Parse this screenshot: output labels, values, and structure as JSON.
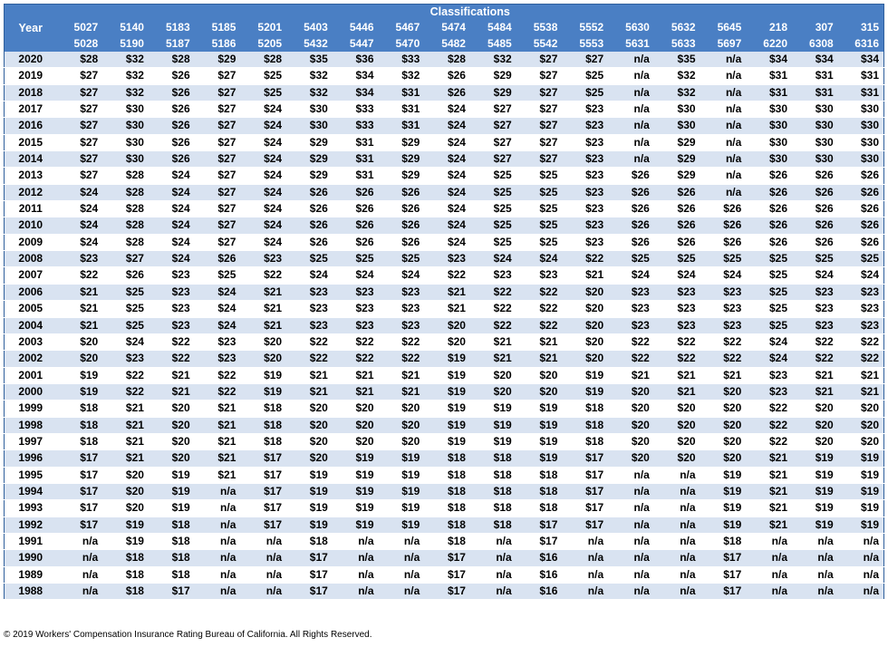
{
  "header": {
    "year_label": "Year",
    "classifications_label": "Classifications",
    "codes_top": [
      "5027",
      "5140",
      "5183",
      "5185",
      "5201",
      "5403",
      "5446",
      "5467",
      "5474",
      "5484",
      "5538",
      "5552",
      "5630",
      "5632",
      "5645",
      "218",
      "307",
      "315"
    ],
    "codes_bottom": [
      "5028",
      "5190",
      "5187",
      "5186",
      "5205",
      "5432",
      "5447",
      "5470",
      "5482",
      "5485",
      "5542",
      "5553",
      "5631",
      "5633",
      "5697",
      "6220",
      "6308",
      "6316"
    ]
  },
  "rows": [
    {
      "year": "2020",
      "values": [
        "$28",
        "$32",
        "$28",
        "$29",
        "$28",
        "$35",
        "$36",
        "$33",
        "$28",
        "$32",
        "$27",
        "$27",
        "n/a",
        "$35",
        "n/a",
        "$34",
        "$34",
        "$34"
      ]
    },
    {
      "year": "2019",
      "values": [
        "$27",
        "$32",
        "$26",
        "$27",
        "$25",
        "$32",
        "$34",
        "$32",
        "$26",
        "$29",
        "$27",
        "$25",
        "n/a",
        "$32",
        "n/a",
        "$31",
        "$31",
        "$31"
      ]
    },
    {
      "year": "2018",
      "values": [
        "$27",
        "$32",
        "$26",
        "$27",
        "$25",
        "$32",
        "$34",
        "$31",
        "$26",
        "$29",
        "$27",
        "$25",
        "n/a",
        "$32",
        "n/a",
        "$31",
        "$31",
        "$31"
      ]
    },
    {
      "year": "2017",
      "values": [
        "$27",
        "$30",
        "$26",
        "$27",
        "$24",
        "$30",
        "$33",
        "$31",
        "$24",
        "$27",
        "$27",
        "$23",
        "n/a",
        "$30",
        "n/a",
        "$30",
        "$30",
        "$30"
      ]
    },
    {
      "year": "2016",
      "values": [
        "$27",
        "$30",
        "$26",
        "$27",
        "$24",
        "$30",
        "$33",
        "$31",
        "$24",
        "$27",
        "$27",
        "$23",
        "n/a",
        "$30",
        "n/a",
        "$30",
        "$30",
        "$30"
      ]
    },
    {
      "year": "2015",
      "values": [
        "$27",
        "$30",
        "$26",
        "$27",
        "$24",
        "$29",
        "$31",
        "$29",
        "$24",
        "$27",
        "$27",
        "$23",
        "n/a",
        "$29",
        "n/a",
        "$30",
        "$30",
        "$30"
      ]
    },
    {
      "year": "2014",
      "values": [
        "$27",
        "$30",
        "$26",
        "$27",
        "$24",
        "$29",
        "$31",
        "$29",
        "$24",
        "$27",
        "$27",
        "$23",
        "n/a",
        "$29",
        "n/a",
        "$30",
        "$30",
        "$30"
      ]
    },
    {
      "year": "2013",
      "values": [
        "$27",
        "$28",
        "$24",
        "$27",
        "$24",
        "$29",
        "$31",
        "$29",
        "$24",
        "$25",
        "$25",
        "$23",
        "$26",
        "$29",
        "n/a",
        "$26",
        "$26",
        "$26"
      ]
    },
    {
      "year": "2012",
      "values": [
        "$24",
        "$28",
        "$24",
        "$27",
        "$24",
        "$26",
        "$26",
        "$26",
        "$24",
        "$25",
        "$25",
        "$23",
        "$26",
        "$26",
        "n/a",
        "$26",
        "$26",
        "$26"
      ]
    },
    {
      "year": "2011",
      "values": [
        "$24",
        "$28",
        "$24",
        "$27",
        "$24",
        "$26",
        "$26",
        "$26",
        "$24",
        "$25",
        "$25",
        "$23",
        "$26",
        "$26",
        "$26",
        "$26",
        "$26",
        "$26"
      ]
    },
    {
      "year": "2010",
      "values": [
        "$24",
        "$28",
        "$24",
        "$27",
        "$24",
        "$26",
        "$26",
        "$26",
        "$24",
        "$25",
        "$25",
        "$23",
        "$26",
        "$26",
        "$26",
        "$26",
        "$26",
        "$26"
      ]
    },
    {
      "year": "2009",
      "values": [
        "$24",
        "$28",
        "$24",
        "$27",
        "$24",
        "$26",
        "$26",
        "$26",
        "$24",
        "$25",
        "$25",
        "$23",
        "$26",
        "$26",
        "$26",
        "$26",
        "$26",
        "$26"
      ]
    },
    {
      "year": "2008",
      "values": [
        "$23",
        "$27",
        "$24",
        "$26",
        "$23",
        "$25",
        "$25",
        "$25",
        "$23",
        "$24",
        "$24",
        "$22",
        "$25",
        "$25",
        "$25",
        "$25",
        "$25",
        "$25"
      ]
    },
    {
      "year": "2007",
      "values": [
        "$22",
        "$26",
        "$23",
        "$25",
        "$22",
        "$24",
        "$24",
        "$24",
        "$22",
        "$23",
        "$23",
        "$21",
        "$24",
        "$24",
        "$24",
        "$25",
        "$24",
        "$24"
      ]
    },
    {
      "year": "2006",
      "values": [
        "$21",
        "$25",
        "$23",
        "$24",
        "$21",
        "$23",
        "$23",
        "$23",
        "$21",
        "$22",
        "$22",
        "$20",
        "$23",
        "$23",
        "$23",
        "$25",
        "$23",
        "$23"
      ]
    },
    {
      "year": "2005",
      "values": [
        "$21",
        "$25",
        "$23",
        "$24",
        "$21",
        "$23",
        "$23",
        "$23",
        "$21",
        "$22",
        "$22",
        "$20",
        "$23",
        "$23",
        "$23",
        "$25",
        "$23",
        "$23"
      ]
    },
    {
      "year": "2004",
      "values": [
        "$21",
        "$25",
        "$23",
        "$24",
        "$21",
        "$23",
        "$23",
        "$23",
        "$20",
        "$22",
        "$22",
        "$20",
        "$23",
        "$23",
        "$23",
        "$25",
        "$23",
        "$23"
      ]
    },
    {
      "year": "2003",
      "values": [
        "$20",
        "$24",
        "$22",
        "$23",
        "$20",
        "$22",
        "$22",
        "$22",
        "$20",
        "$21",
        "$21",
        "$20",
        "$22",
        "$22",
        "$22",
        "$24",
        "$22",
        "$22"
      ]
    },
    {
      "year": "2002",
      "values": [
        "$20",
        "$23",
        "$22",
        "$23",
        "$20",
        "$22",
        "$22",
        "$22",
        "$19",
        "$21",
        "$21",
        "$20",
        "$22",
        "$22",
        "$22",
        "$24",
        "$22",
        "$22"
      ]
    },
    {
      "year": "2001",
      "values": [
        "$19",
        "$22",
        "$21",
        "$22",
        "$19",
        "$21",
        "$21",
        "$21",
        "$19",
        "$20",
        "$20",
        "$19",
        "$21",
        "$21",
        "$21",
        "$23",
        "$21",
        "$21"
      ]
    },
    {
      "year": "2000",
      "values": [
        "$19",
        "$22",
        "$21",
        "$22",
        "$19",
        "$21",
        "$21",
        "$21",
        "$19",
        "$20",
        "$20",
        "$19",
        "$20",
        "$21",
        "$20",
        "$23",
        "$21",
        "$21"
      ]
    },
    {
      "year": "1999",
      "values": [
        "$18",
        "$21",
        "$20",
        "$21",
        "$18",
        "$20",
        "$20",
        "$20",
        "$19",
        "$19",
        "$19",
        "$18",
        "$20",
        "$20",
        "$20",
        "$22",
        "$20",
        "$20"
      ]
    },
    {
      "year": "1998",
      "values": [
        "$18",
        "$21",
        "$20",
        "$21",
        "$18",
        "$20",
        "$20",
        "$20",
        "$19",
        "$19",
        "$19",
        "$18",
        "$20",
        "$20",
        "$20",
        "$22",
        "$20",
        "$20"
      ]
    },
    {
      "year": "1997",
      "values": [
        "$18",
        "$21",
        "$20",
        "$21",
        "$18",
        "$20",
        "$20",
        "$20",
        "$19",
        "$19",
        "$19",
        "$18",
        "$20",
        "$20",
        "$20",
        "$22",
        "$20",
        "$20"
      ]
    },
    {
      "year": "1996",
      "values": [
        "$17",
        "$21",
        "$20",
        "$21",
        "$17",
        "$20",
        "$19",
        "$19",
        "$18",
        "$18",
        "$19",
        "$17",
        "$20",
        "$20",
        "$20",
        "$21",
        "$19",
        "$19"
      ]
    },
    {
      "year": "1995",
      "values": [
        "$17",
        "$20",
        "$19",
        "$21",
        "$17",
        "$19",
        "$19",
        "$19",
        "$18",
        "$18",
        "$18",
        "$17",
        "n/a",
        "n/a",
        "$19",
        "$21",
        "$19",
        "$19"
      ]
    },
    {
      "year": "1994",
      "values": [
        "$17",
        "$20",
        "$19",
        "n/a",
        "$17",
        "$19",
        "$19",
        "$19",
        "$18",
        "$18",
        "$18",
        "$17",
        "n/a",
        "n/a",
        "$19",
        "$21",
        "$19",
        "$19"
      ]
    },
    {
      "year": "1993",
      "values": [
        "$17",
        "$20",
        "$19",
        "n/a",
        "$17",
        "$19",
        "$19",
        "$19",
        "$18",
        "$18",
        "$18",
        "$17",
        "n/a",
        "n/a",
        "$19",
        "$21",
        "$19",
        "$19"
      ]
    },
    {
      "year": "1992",
      "values": [
        "$17",
        "$19",
        "$18",
        "n/a",
        "$17",
        "$19",
        "$19",
        "$19",
        "$18",
        "$18",
        "$17",
        "$17",
        "n/a",
        "n/a",
        "$19",
        "$21",
        "$19",
        "$19"
      ]
    },
    {
      "year": "1991",
      "values": [
        "n/a",
        "$19",
        "$18",
        "n/a",
        "n/a",
        "$18",
        "n/a",
        "n/a",
        "$18",
        "n/a",
        "$17",
        "n/a",
        "n/a",
        "n/a",
        "$18",
        "n/a",
        "n/a",
        "n/a"
      ]
    },
    {
      "year": "1990",
      "values": [
        "n/a",
        "$18",
        "$18",
        "n/a",
        "n/a",
        "$17",
        "n/a",
        "n/a",
        "$17",
        "n/a",
        "$16",
        "n/a",
        "n/a",
        "n/a",
        "$17",
        "n/a",
        "n/a",
        "n/a"
      ]
    },
    {
      "year": "1989",
      "values": [
        "n/a",
        "$18",
        "$18",
        "n/a",
        "n/a",
        "$17",
        "n/a",
        "n/a",
        "$17",
        "n/a",
        "$16",
        "n/a",
        "n/a",
        "n/a",
        "$17",
        "n/a",
        "n/a",
        "n/a"
      ]
    },
    {
      "year": "1988",
      "values": [
        "n/a",
        "$18",
        "$17",
        "n/a",
        "n/a",
        "$17",
        "n/a",
        "n/a",
        "$17",
        "n/a",
        "$16",
        "n/a",
        "n/a",
        "n/a",
        "$17",
        "n/a",
        "n/a",
        "n/a"
      ]
    }
  ],
  "colors": {
    "header_bg": "#4a7fc4",
    "header_text": "#ffffff",
    "stripe_bg": "#d9e3f1",
    "row_bg": "#ffffff"
  },
  "footer": {
    "copyright": "© 2019 Workers' Compensation Insurance Rating Bureau of California. All Rights Reserved."
  }
}
